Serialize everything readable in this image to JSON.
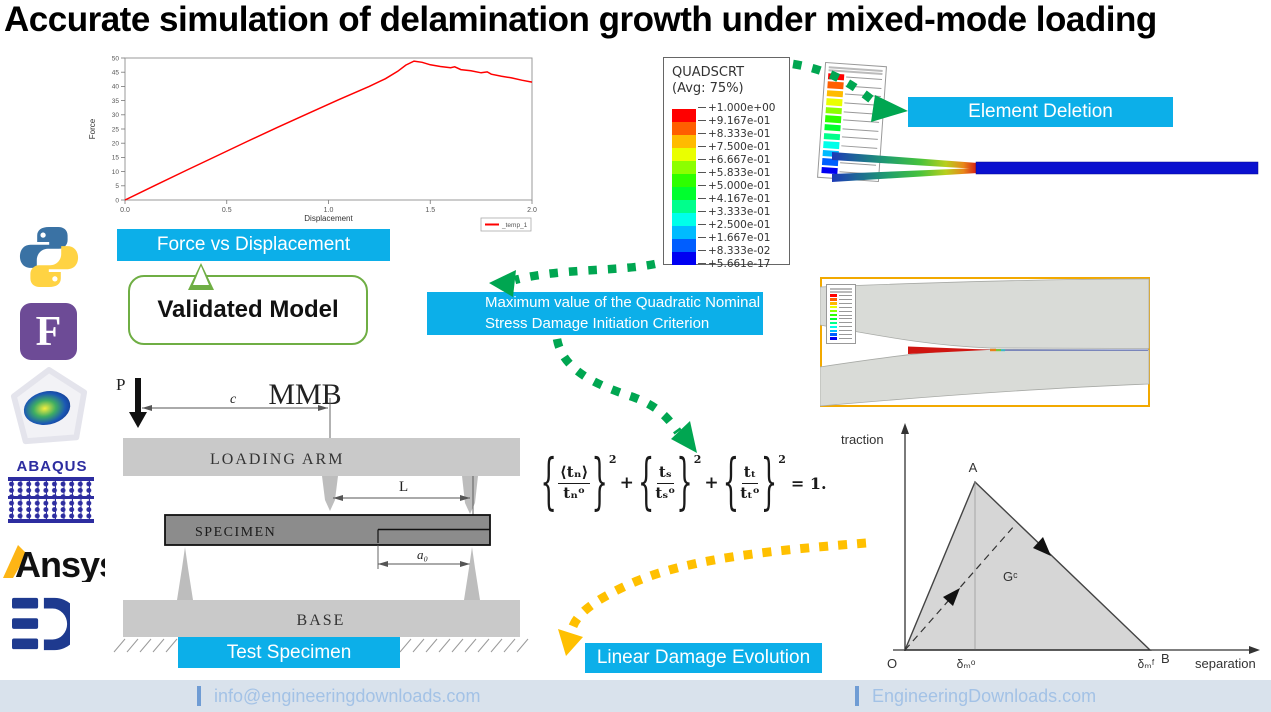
{
  "title": "Accurate simulation of delamination growth under mixed-mode loading",
  "accent_colors": {
    "cyan_label": "#0cafe9",
    "green_arrow": "#00a651",
    "yellow_arrow": "#ffc000",
    "callout_green": "#6fae44",
    "curve_red": "#ff0000",
    "footer_bg": "#d9e2ec",
    "footer_text": "#a3c2e6"
  },
  "labels": {
    "force_vs_displacement": "Force vs Displacement",
    "validated_model": "Validated Model",
    "element_deletion": "Element Deletion",
    "max_criterion": "Maximum value of the Quadratic Nominal Stress Damage Initiation Criterion",
    "test_specimen": "Test Specimen",
    "linear_damage_evolution": "Linear Damage Evolution"
  },
  "sidebar": {
    "logos": [
      {
        "name": "python-logo"
      },
      {
        "name": "fortran-logo",
        "label": "F"
      },
      {
        "name": "comsol-logo"
      },
      {
        "name": "abaqus-logo",
        "label": "ABAQUS"
      },
      {
        "name": "ansys-logo",
        "label": "Ansys"
      },
      {
        "name": "engineeringdownloads-logo"
      }
    ]
  },
  "chart_data": {
    "type": "line",
    "title": "",
    "xlabel": "Displacement",
    "ylabel": "Force",
    "xlim": [
      0.0,
      2.0
    ],
    "ylim": [
      0,
      50
    ],
    "xticks": [
      "0.0",
      "0.5",
      "1.0",
      "1.5",
      "2.0"
    ],
    "yticks": [
      0,
      5,
      10,
      15,
      20,
      25,
      30,
      35,
      40,
      45,
      50
    ],
    "grid": false,
    "legend_position": "lower right",
    "legend": [
      "_temp_1"
    ],
    "series": [
      {
        "name": "_temp_1",
        "color": "#ff0000",
        "x": [
          0,
          0.15,
          0.3,
          0.45,
          0.6,
          0.75,
          0.9,
          1.05,
          1.2,
          1.28,
          1.34,
          1.38,
          1.42,
          1.46,
          1.5,
          1.55,
          1.6,
          1.62,
          1.65,
          1.7,
          1.75,
          1.78,
          1.8,
          1.85,
          1.9,
          1.95,
          2.0
        ],
        "y": [
          0,
          5.2,
          10.4,
          15.5,
          20.6,
          25.6,
          30.5,
          35.3,
          40,
          42.7,
          45.3,
          47.5,
          48.9,
          48.5,
          47.6,
          47.0,
          46.6,
          46.9,
          45.9,
          45.5,
          44.8,
          45.1,
          44.3,
          43.6,
          43.0,
          42.2,
          41.5
        ]
      }
    ]
  },
  "quadscrt": {
    "title": "QUADSCRT",
    "subtitle": "(Avg: 75%)",
    "values": [
      "+1.000e+00",
      "+9.167e-01",
      "+8.333e-01",
      "+7.500e-01",
      "+6.667e-01",
      "+5.833e-01",
      "+5.000e-01",
      "+4.167e-01",
      "+3.333e-01",
      "+2.500e-01",
      "+1.667e-01",
      "+8.333e-02",
      "+5.661e-17"
    ],
    "colors": [
      "#FF0000",
      "#FF5E00",
      "#FFBB00",
      "#EAFF00",
      "#8CFF00",
      "#2EFF00",
      "#00FF2E",
      "#00FF8C",
      "#00FFEA",
      "#00BBFF",
      "#005EFF",
      "#0000F2"
    ]
  },
  "equation": {
    "lbrace": "{",
    "rbrace": "}",
    "exp": "2",
    "plus": "+",
    "rhs": "= 1.",
    "t1": {
      "num": "⟨tₙ⟩",
      "den": "tₙᵒ"
    },
    "t2": {
      "num": "tₛ",
      "den": "tₛᵒ"
    },
    "t3": {
      "num": "tₜ",
      "den": "tₜᵒ"
    }
  },
  "mmb": {
    "title": "MMB",
    "load_label": "P",
    "dim_c": "c",
    "loading_arm": "LOADING ARM",
    "dim_L": "L",
    "specimen": "SPECIMEN",
    "dim_a0": "a₀",
    "base": "BASE"
  },
  "traction_diagram": {
    "ylabel": "traction",
    "xlabel": "separation",
    "point_a": "A",
    "origin": "O",
    "point_b": "B",
    "area_label": "Gᶜ",
    "delta_initiation": "δₘᵒ",
    "delta_failure": "δₘᶠ"
  },
  "footer": {
    "email": "info@engineeringdownloads.com",
    "site": "EngineeringDownloads.com"
  }
}
